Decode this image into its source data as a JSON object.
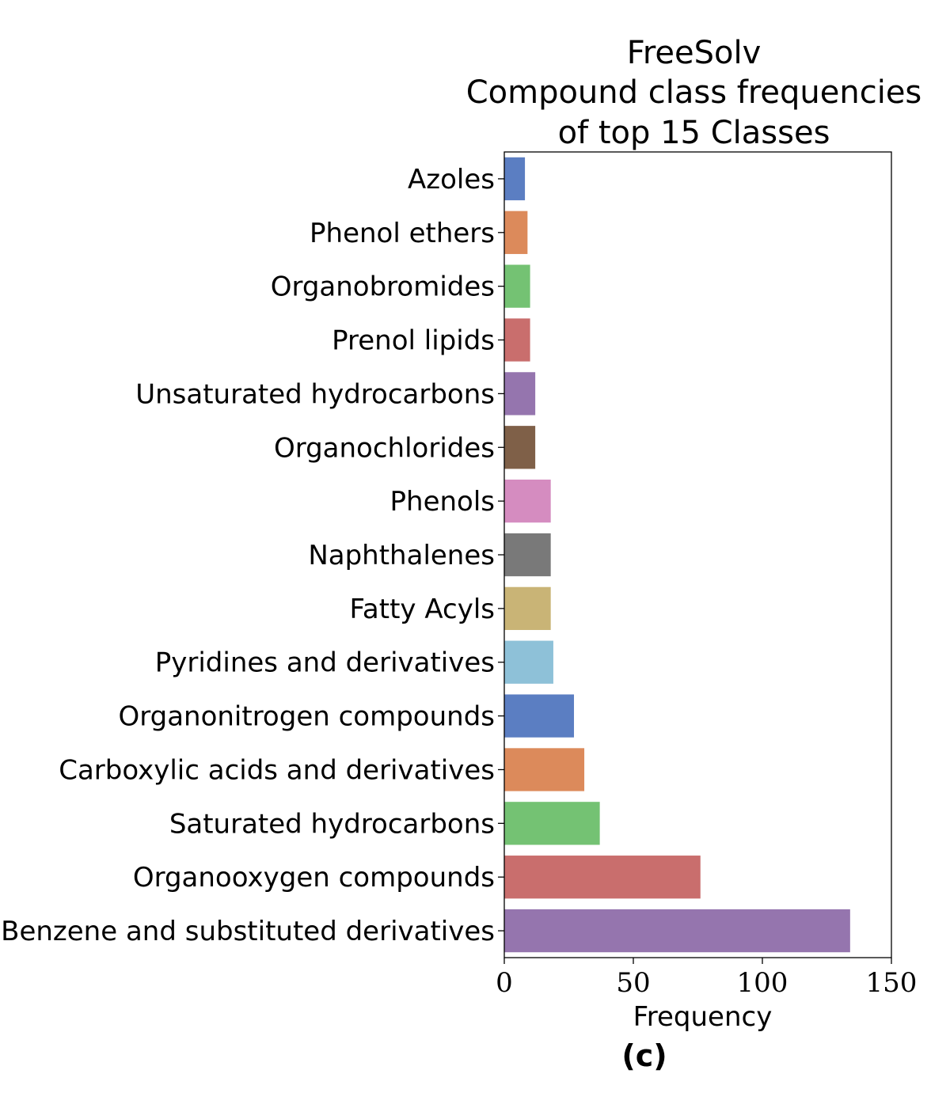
{
  "chart_data": {
    "type": "bar",
    "orientation": "horizontal",
    "title_lines": [
      "FreeSolv",
      "Compound class frequencies",
      "of top 15 Classes"
    ],
    "xlabel": "Frequency",
    "ylabel": "",
    "panel_label": "(c)",
    "xlim": [
      0,
      150
    ],
    "xticks": [
      0,
      50,
      100,
      150
    ],
    "grid": false,
    "categories": [
      "Azoles",
      "Phenol ethers",
      "Organobromides",
      "Prenol lipids",
      "Unsaturated hydrocarbons",
      "Organochlorides",
      "Phenols",
      "Naphthalenes",
      "Fatty Acyls",
      "Pyridines and derivatives",
      "Organonitrogen compounds",
      "Carboxylic acids and derivatives",
      "Saturated hydrocarbons",
      "Organooxygen compounds",
      "Benzene and substituted derivatives"
    ],
    "values": [
      8,
      9,
      10,
      10,
      12,
      12,
      18,
      18,
      18,
      19,
      27,
      31,
      37,
      76,
      134
    ],
    "colors": [
      "#5b7ec2",
      "#dc8a5b",
      "#74c273",
      "#c96e6d",
      "#9575ae",
      "#7f6048",
      "#d58cc0",
      "#797979",
      "#c9b476",
      "#8ec1d8",
      "#5b7ec2",
      "#dc8a5b",
      "#74c273",
      "#c96e6d",
      "#9575ae"
    ]
  }
}
